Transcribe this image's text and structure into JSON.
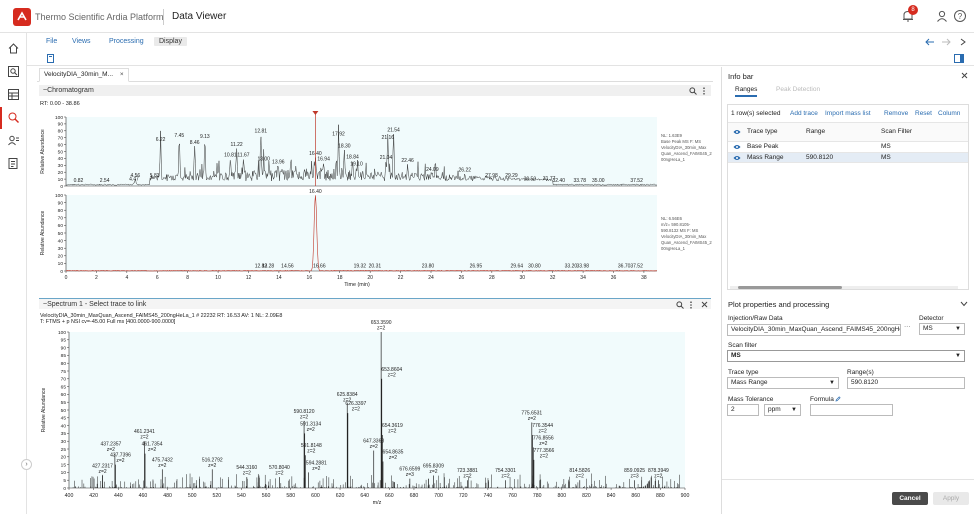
{
  "header": {
    "brand": "Thermo Scientific Ardia Platform",
    "title": "Data Viewer",
    "notification_count": "8"
  },
  "menu": {
    "file": "File",
    "views": "Views",
    "processing": "Processing",
    "display": "Display"
  },
  "document_tab": {
    "label": "VelocityDIA_30min_M...",
    "close": "×"
  },
  "chromatogram": {
    "header": "~Chromatogram",
    "range": "RT: 0.00 - 38.86",
    "top_info": [
      "NL: 1.63E9",
      "Base Peak MS F: MS",
      "VelocityDIA_30min_Max",
      "Quan_Ascend_FAIMS45_2",
      "00ngHeLa_1"
    ],
    "bottom_info": [
      "NL: 6.56E6",
      "m/z= 590.8105-",
      "590.8132 MS F: MS",
      "VelocityDIA_30min_Max",
      "Quan_Ascend_FAIMS45_2",
      "00ngHeLa_1"
    ],
    "ylabel": "Relative Abundance",
    "xlabel": "Time (min)"
  },
  "spectrum": {
    "header": "~Spectrum 1 - Select trace to link",
    "info_line1": "VelocityDIA_30min_MaxQuan_Ascend_FAIMS45_200ngHeLa_1          # 22232  RT: 16.53  AV: 1  NL: 2.09E8",
    "info_line2": "T:  FTMS + p NSI cv=-45.00 Full ms [400.0000-900.0000]",
    "ylabel": "Relative Abundance",
    "xlabel": "m/z"
  },
  "chart_data": [
    {
      "type": "line",
      "title": "",
      "xlabel": "Time (min)",
      "ylabel": "Relative Abundance",
      "xlim": [
        0,
        38.86
      ],
      "ylim": [
        0,
        100
      ],
      "x_ticks": [
        "0",
        "2",
        "4",
        "6",
        "8",
        "10",
        "12",
        "14",
        "16",
        "18",
        "20",
        "22",
        "24",
        "26",
        "28",
        "30",
        "32",
        "34",
        "36",
        "38"
      ],
      "y_ticks": [
        "0",
        "10",
        "20",
        "30",
        "40",
        "50",
        "60",
        "70",
        "80",
        "90",
        "100"
      ],
      "peak_labels": [
        {
          "x": 0.82,
          "y": 3
        },
        {
          "x": 2.54,
          "y": 3
        },
        {
          "x": 4.47,
          "y": 5
        },
        {
          "x": 4.56,
          "y": 10
        },
        {
          "x": 5.83,
          "y": 10
        },
        {
          "x": 6.22,
          "y": 62
        },
        {
          "x": 7.45,
          "y": 68
        },
        {
          "x": 8.46,
          "y": 58
        },
        {
          "x": 9.13,
          "y": 67
        },
        {
          "x": 10.81,
          "y": 40
        },
        {
          "x": 11.22,
          "y": 55
        },
        {
          "x": 11.67,
          "y": 40
        },
        {
          "x": 12.81,
          "y": 75
        },
        {
          "x": 13.0,
          "y": 34
        },
        {
          "x": 13.96,
          "y": 30
        },
        {
          "x": 16.4,
          "y": 42
        },
        {
          "x": 16.94,
          "y": 34
        },
        {
          "x": 17.92,
          "y": 70
        },
        {
          "x": 18.3,
          "y": 53
        },
        {
          "x": 18.84,
          "y": 37
        },
        {
          "x": 19.1,
          "y": 27
        },
        {
          "x": 21.04,
          "y": 36
        },
        {
          "x": 21.16,
          "y": 65
        },
        {
          "x": 21.54,
          "y": 76
        },
        {
          "x": 22.46,
          "y": 32
        },
        {
          "x": 24.09,
          "y": 19
        },
        {
          "x": 26.22,
          "y": 18
        },
        {
          "x": 27.98,
          "y": 10
        },
        {
          "x": 29.29,
          "y": 10
        },
        {
          "x": 30.5,
          "y": 5
        },
        {
          "x": 31.77,
          "y": 6
        },
        {
          "x": 32.4,
          "y": 3
        },
        {
          "x": 33.78,
          "y": 3
        },
        {
          "x": 35.0,
          "y": 3
        },
        {
          "x": 37.52,
          "y": 3
        }
      ],
      "marker": {
        "x": 16.4
      }
    },
    {
      "type": "line",
      "xlabel": "Time (min)",
      "ylabel": "Relative Abundance",
      "xlim": [
        0,
        38.86
      ],
      "ylim": [
        0,
        100
      ],
      "peak_labels": [
        {
          "x": 16.4,
          "y": 100
        },
        {
          "x": 12.82,
          "y": 2
        },
        {
          "x": 13.28,
          "y": 2
        },
        {
          "x": 14.56,
          "y": 2
        },
        {
          "x": 16.66,
          "y": 2
        },
        {
          "x": 19.32,
          "y": 2
        },
        {
          "x": 20.31,
          "y": 2
        },
        {
          "x": 23.8,
          "y": 2
        },
        {
          "x": 26.95,
          "y": 2
        },
        {
          "x": 29.64,
          "y": 2
        },
        {
          "x": 30.8,
          "y": 2
        },
        {
          "x": 33.2,
          "y": 2
        },
        {
          "x": 33.98,
          "y": 2
        },
        {
          "x": 36.7,
          "y": 2
        },
        {
          "x": 37.52,
          "y": 2
        }
      ]
    },
    {
      "type": "bar",
      "xlabel": "m/z",
      "ylabel": "Relative Abundance",
      "xlim": [
        400,
        900
      ],
      "ylim": [
        0,
        100
      ],
      "x_ticks": [
        "400",
        "420",
        "440",
        "460",
        "480",
        "500",
        "520",
        "540",
        "560",
        "580",
        "600",
        "620",
        "640",
        "660",
        "680",
        "700",
        "720",
        "740",
        "760",
        "780",
        "800",
        "820",
        "840",
        "860",
        "880",
        "900"
      ],
      "y_ticks": [
        "0",
        "5",
        "10",
        "15",
        "20",
        "25",
        "30",
        "35",
        "40",
        "45",
        "50",
        "55",
        "60",
        "65",
        "70",
        "75",
        "80",
        "85",
        "90",
        "95",
        "100"
      ],
      "peaks": [
        {
          "mz": "427.2317",
          "z": "z=2",
          "x": 427.23,
          "y": 8
        },
        {
          "mz": "437.2357",
          "z": "z=2",
          "x": 437.24,
          "y": 22
        },
        {
          "mz": "437.7396",
          "z": "z=2",
          "x": 437.74,
          "y": 15
        },
        {
          "mz": "461.2341",
          "z": "z=2",
          "x": 461.23,
          "y": 30
        },
        {
          "mz": "461.7354",
          "z": "z=2",
          "x": 461.74,
          "y": 22
        },
        {
          "mz": "475.7432",
          "z": "z=2",
          "x": 475.74,
          "y": 12
        },
        {
          "mz": "516.2792",
          "z": "z=2",
          "x": 516.28,
          "y": 12
        },
        {
          "mz": "544.3160",
          "z": "z=2",
          "x": 544.32,
          "y": 7
        },
        {
          "mz": "570.8040",
          "z": "z=2",
          "x": 570.8,
          "y": 7
        },
        {
          "mz": "590.8120",
          "z": "z=2",
          "x": 590.81,
          "y": 43
        },
        {
          "mz": "591.3134",
          "z": "z=2",
          "x": 591.31,
          "y": 35
        },
        {
          "mz": "591.8148",
          "z": "z=2",
          "x": 591.81,
          "y": 21
        },
        {
          "mz": "594.2881",
          "z": "z=2",
          "x": 594.29,
          "y": 10
        },
        {
          "mz": "625.8384",
          "z": "z=2",
          "x": 625.84,
          "y": 54
        },
        {
          "mz": "626.3397",
          "z": "z=2",
          "x": 626.34,
          "y": 48
        },
        {
          "mz": "647.3368",
          "z": "z=2",
          "x": 647.34,
          "y": 24
        },
        {
          "mz": "653.3590",
          "z": "z=2",
          "x": 653.36,
          "y": 100
        },
        {
          "mz": "653.8604",
          "z": "z=2",
          "x": 653.86,
          "y": 70
        },
        {
          "mz": "654.3619",
          "z": "z=2",
          "x": 654.36,
          "y": 34
        },
        {
          "mz": "654.8635",
          "z": "z=2",
          "x": 654.86,
          "y": 17
        },
        {
          "mz": "676.6599",
          "z": "z=3",
          "x": 676.66,
          "y": 6
        },
        {
          "mz": "695.8309",
          "z": "z=2",
          "x": 695.83,
          "y": 8
        },
        {
          "mz": "723.3881",
          "z": "z=2",
          "x": 723.39,
          "y": 5
        },
        {
          "mz": "754.3301",
          "z": "z=2",
          "x": 754.33,
          "y": 5
        },
        {
          "mz": "775.6531",
          "z": "z=2",
          "x": 775.65,
          "y": 42
        },
        {
          "mz": "776.3544",
          "z": "z=2",
          "x": 776.35,
          "y": 34
        },
        {
          "mz": "776.8556",
          "z": "z=2",
          "x": 776.86,
          "y": 26
        },
        {
          "mz": "777.3566",
          "z": "z=2",
          "x": 777.36,
          "y": 18
        },
        {
          "mz": "814.5826",
          "z": "z=2",
          "x": 814.58,
          "y": 5
        },
        {
          "mz": "859.0925",
          "z": "z=3",
          "x": 859.09,
          "y": 5
        },
        {
          "mz": "878.3949",
          "z": "z=2",
          "x": 878.39,
          "y": 5
        }
      ]
    }
  ],
  "info_bar": {
    "title": "Info bar",
    "tabs": [
      "Ranges",
      "Peak Detection"
    ],
    "selected": "1 row(s) selected",
    "actions": [
      "Add trace",
      "Import mass list",
      "Remove",
      "Reset",
      "Column"
    ],
    "columns": [
      "Trace type",
      "Range",
      "Scan Filter"
    ],
    "rows": [
      {
        "type": "Base Peak",
        "range": "",
        "filter": "MS"
      },
      {
        "type": "Mass Range",
        "range": "590.8120",
        "filter": "MS"
      }
    ]
  },
  "plot_props": {
    "title": "Plot properties and processing",
    "injection_label": "Injection/Raw Data",
    "injection_value": "VelocityDIA_30min_MaxQuan_Ascend_FAIMS45_200ngHe",
    "injection_more": "···",
    "detector_label": "Detector",
    "detector_value": "MS",
    "scan_filter_label": "Scan filter",
    "scan_filter_value": "MS",
    "trace_type_label": "Trace type",
    "trace_type_value": "Mass Range",
    "ranges_label": "Range(s)",
    "ranges_value": "590.8120",
    "mass_tol_label": "Mass Tolerance",
    "mass_tol_value": "2",
    "mass_tol_unit": "ppm",
    "formula_label": "Formula",
    "formula_value": "",
    "cancel": "Cancel",
    "apply": "Apply"
  },
  "colors": {
    "accent": "#d62b1f",
    "link": "#2a6cb0",
    "trace": "#222222",
    "marker": "#c0392b",
    "plot_bg": "#f1fbfc"
  }
}
